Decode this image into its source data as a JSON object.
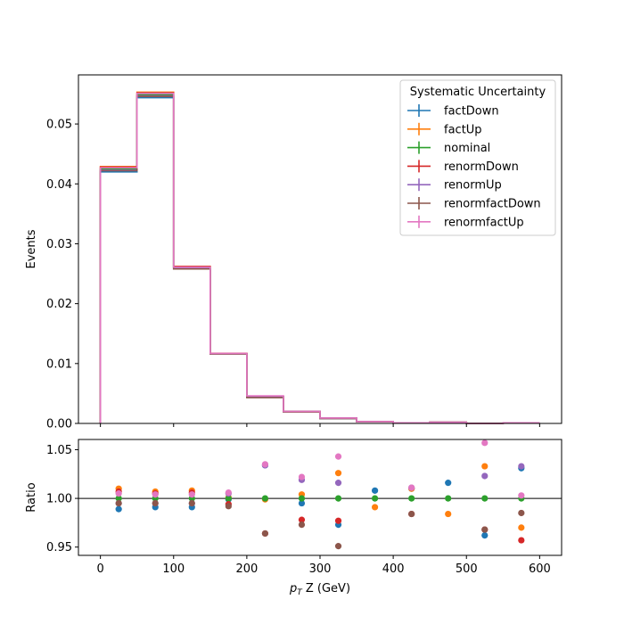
{
  "chart_data": [
    {
      "type": "line",
      "panel": "main",
      "drawstyle": "steps",
      "ylabel": "Events",
      "xlim": [
        -30,
        630
      ],
      "ylim": [
        0,
        0.0582
      ],
      "yticks": [
        0.0,
        0.01,
        0.02,
        0.03,
        0.04,
        0.05
      ],
      "ytick_labels": [
        "0.00",
        "0.01",
        "0.02",
        "0.03",
        "0.04",
        "0.05"
      ],
      "bin_edges": [
        0,
        50,
        100,
        150,
        200,
        250,
        300,
        350,
        400,
        450,
        500,
        550,
        600
      ],
      "legend": {
        "title": "Systematic Uncertainty",
        "placement": "upper right"
      },
      "series": [
        {
          "name": "factDown",
          "color": "#1f77b4",
          "values": [
            0.042,
            0.0544,
            0.0258,
            0.0116,
            0.0044,
            0.0019,
            0.0008,
            0.0003,
            0.0001,
            0.0002,
            0.0,
            0.0001
          ]
        },
        {
          "name": "factUp",
          "color": "#ff7f0e",
          "values": [
            0.0429,
            0.0553,
            0.0262,
            0.0117,
            0.0045,
            0.002,
            0.0009,
            0.0003,
            0.0001,
            0.0002,
            0.0,
            0.0001
          ]
        },
        {
          "name": "nominal",
          "color": "#2ca02c",
          "values": [
            0.0425,
            0.0549,
            0.026,
            0.0116,
            0.0045,
            0.002,
            0.0009,
            0.0003,
            0.0001,
            0.0002,
            0.0,
            0.0001
          ]
        },
        {
          "name": "renormDown",
          "color": "#d62728",
          "values": [
            0.0428,
            0.0552,
            0.0262,
            0.0117,
            0.0045,
            0.002,
            0.0009,
            0.0003,
            0.0001,
            0.0002,
            0.0,
            0.0001
          ]
        },
        {
          "name": "renormUp",
          "color": "#9467bd",
          "values": [
            0.0423,
            0.0547,
            0.0259,
            0.0116,
            0.0045,
            0.002,
            0.0009,
            0.0003,
            0.0001,
            0.0002,
            0.0,
            0.0001
          ]
        },
        {
          "name": "renormfactDown",
          "color": "#8c564b",
          "values": [
            0.0422,
            0.0546,
            0.0258,
            0.0116,
            0.0043,
            0.0019,
            0.0008,
            0.0003,
            0.0001,
            0.0002,
            0.0,
            0.0001
          ]
        },
        {
          "name": "renormfactUp",
          "color": "#e377c2",
          "values": [
            0.0427,
            0.0551,
            0.0261,
            0.0117,
            0.0046,
            0.002,
            0.0009,
            0.0003,
            0.0001,
            0.0002,
            0.0,
            0.0001
          ]
        }
      ]
    },
    {
      "type": "scatter",
      "panel": "ratio",
      "xlabel_main": "p",
      "xlabel_sub": "T",
      "xlabel_rest": " Z (GeV)",
      "ylabel": "Ratio",
      "xlim": [
        -30,
        630
      ],
      "ylim": [
        0.9415,
        1.0605
      ],
      "xticks": [
        0,
        100,
        200,
        300,
        400,
        500,
        600
      ],
      "xtick_labels": [
        "0",
        "100",
        "200",
        "300",
        "400",
        "500",
        "600"
      ],
      "yticks": [
        0.95,
        1.0,
        1.05
      ],
      "ytick_labels": [
        "0.95",
        "1.00",
        "1.05"
      ],
      "reference_line": 1.0,
      "x": [
        25,
        75,
        125,
        175,
        225,
        275,
        325,
        375,
        425,
        475,
        525,
        575
      ],
      "series": [
        {
          "name": "factDown",
          "color": "#1f77b4",
          "values": [
            0.989,
            0.991,
            0.991,
            0.999,
            1.034,
            0.995,
            0.973,
            1.008,
            1.01,
            1.016,
            0.962,
            1.031
          ]
        },
        {
          "name": "factUp",
          "color": "#ff7f0e",
          "values": [
            1.01,
            1.007,
            1.008,
            1.001,
            0.999,
            1.004,
            1.026,
            0.991,
            1.01,
            0.984,
            1.033,
            0.97
          ]
        },
        {
          "name": "nominal",
          "color": "#2ca02c",
          "values": [
            1.0,
            1.0,
            1.0,
            1.0,
            1.0,
            1.0,
            1.0,
            1.0,
            1.0,
            1.0,
            1.0,
            1.0
          ]
        },
        {
          "name": "renormDown",
          "color": "#d62728",
          "values": [
            1.007,
            1.005,
            1.006,
            0.994,
            0.964,
            0.978,
            0.977,
            null,
            0.984,
            null,
            0.968,
            0.957
          ]
        },
        {
          "name": "renormUp",
          "color": "#9467bd",
          "values": [
            0.995,
            0.995,
            0.995,
            1.005,
            1.034,
            1.019,
            1.016,
            null,
            1.011,
            null,
            1.023,
            1.033
          ]
        },
        {
          "name": "renormfactDown",
          "color": "#8c564b",
          "values": [
            0.995,
            0.995,
            0.995,
            0.992,
            0.964,
            0.973,
            0.951,
            null,
            0.984,
            null,
            0.968,
            0.985
          ]
        },
        {
          "name": "renormfactUp",
          "color": "#e377c2",
          "values": [
            1.005,
            1.004,
            1.004,
            1.006,
            1.035,
            1.022,
            1.043,
            null,
            1.011,
            null,
            1.057,
            1.003
          ]
        }
      ]
    }
  ]
}
